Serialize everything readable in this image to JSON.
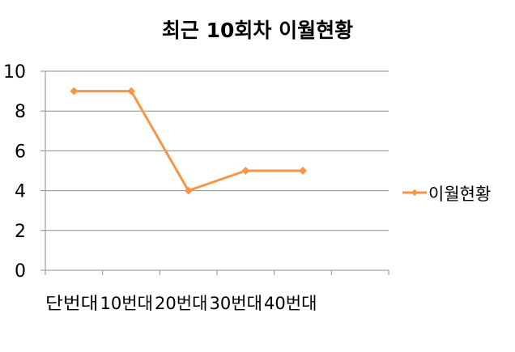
{
  "chart_data": {
    "type": "line",
    "title": "최근 10회차 이월현황",
    "categories": [
      "단번대",
      "10번대",
      "20번대",
      "30번대",
      "40번대"
    ],
    "series": [
      {
        "name": "이월현황",
        "values": [
          9,
          9,
          4,
          5,
          5
        ],
        "color": "#F79646"
      }
    ],
    "ylim": [
      0,
      10
    ],
    "yticks": [
      "0",
      "2",
      "4",
      "6",
      "8",
      "10"
    ],
    "grid": true,
    "legend": "right"
  }
}
